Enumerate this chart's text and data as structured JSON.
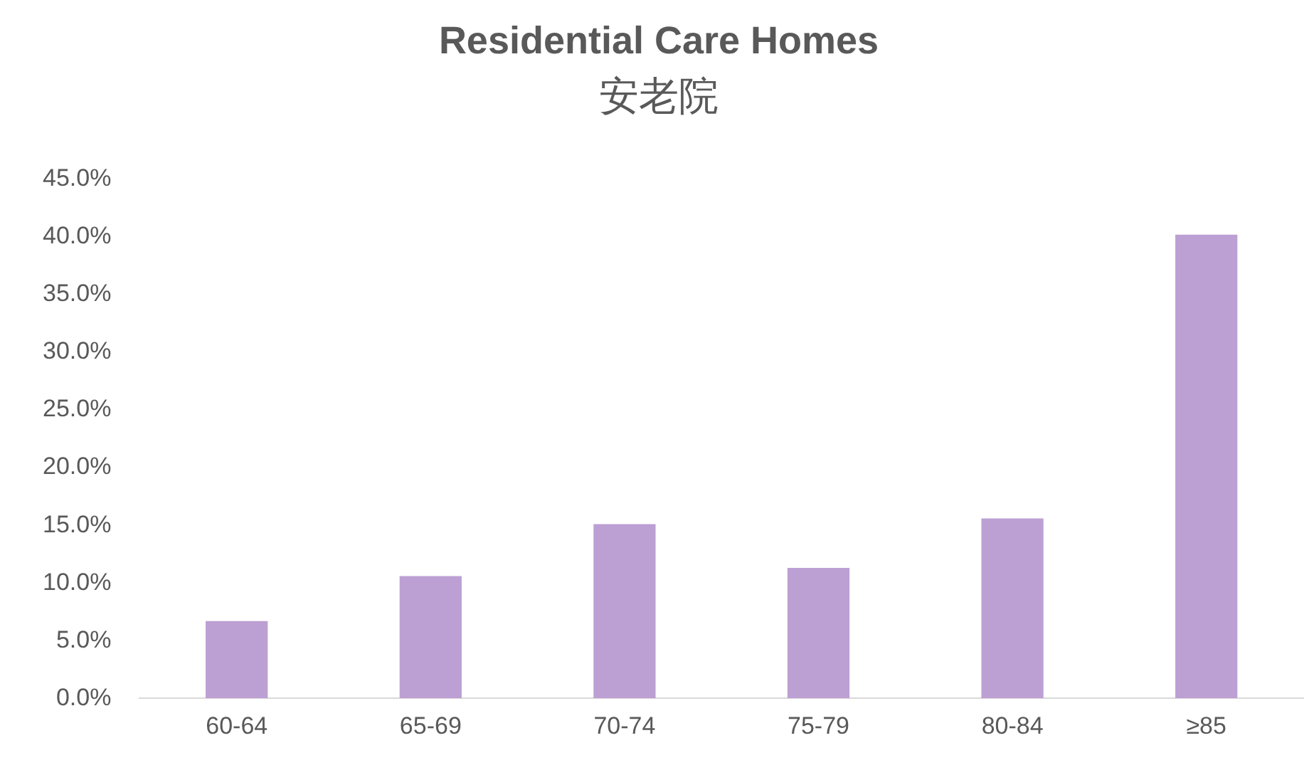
{
  "chart_data": {
    "type": "bar",
    "title": "Residential Care Homes",
    "subtitle": "安老院",
    "categories": [
      "60-64",
      "65-69",
      "70-74",
      "75-79",
      "80-84",
      "≥85"
    ],
    "values": [
      6.7,
      10.6,
      15.1,
      11.3,
      15.6,
      40.2
    ],
    "color": "#bc9fd3",
    "ylim": [
      0,
      45
    ],
    "yticks": [
      {
        "value": 0,
        "label": "0.0%"
      },
      {
        "value": 5,
        "label": "5.0%"
      },
      {
        "value": 10,
        "label": "10.0%"
      },
      {
        "value": 15,
        "label": "15.0%"
      },
      {
        "value": 20,
        "label": "20.0%"
      },
      {
        "value": 25,
        "label": "25.0%"
      },
      {
        "value": 30,
        "label": "30.0%"
      },
      {
        "value": 35,
        "label": "35.0%"
      },
      {
        "value": 40,
        "label": "40.0%"
      },
      {
        "value": 45,
        "label": "45.0%"
      }
    ],
    "grid": false,
    "legend": false
  }
}
